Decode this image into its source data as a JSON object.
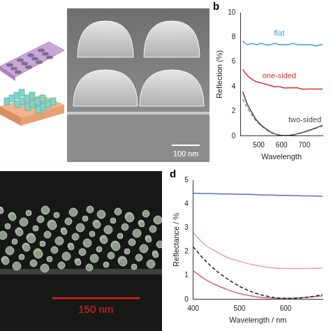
{
  "chart_data": [
    {
      "type": "line",
      "panel": "b",
      "x_label": "Wavelength",
      "y_label": "Reflection (%)",
      "x": [
        430,
        450,
        470,
        490,
        510,
        530,
        550,
        570,
        590,
        610,
        630,
        650,
        670,
        690,
        710,
        730,
        750,
        770,
        780
      ],
      "xlim": [
        420,
        780
      ],
      "xticks": [
        500,
        600,
        700
      ],
      "ylim": [
        0,
        10
      ],
      "yticks": [
        0,
        2,
        4,
        6,
        8,
        10
      ],
      "grid": false,
      "series": [
        {
          "name": "flat",
          "color": "#3d9be0",
          "line_style": "solid",
          "values": [
            7.7,
            7.4,
            7.5,
            7.4,
            7.5,
            7.4,
            7.4,
            7.5,
            7.4,
            7.4,
            7.4,
            7.5,
            7.4,
            7.4,
            7.4,
            7.4,
            7.3,
            7.4,
            7.4
          ]
        },
        {
          "name": "one-sided",
          "color": "#e0302a",
          "line_style": "solid",
          "values": [
            5.4,
            4.9,
            4.6,
            4.4,
            4.3,
            4.2,
            4.1,
            4.0,
            4.0,
            3.9,
            3.9,
            3.9,
            3.9,
            3.8,
            3.8,
            3.8,
            3.8,
            3.8,
            3.8
          ]
        },
        {
          "name": "two-sided",
          "color": "#4a4a4a",
          "line_style": "solid",
          "values": [
            3.6,
            2.6,
            1.9,
            1.3,
            0.9,
            0.6,
            0.35,
            0.18,
            0.08,
            0.05,
            0.06,
            0.1,
            0.18,
            0.28,
            0.4,
            0.52,
            0.65,
            0.8,
            0.85
          ]
        },
        {
          "color": "#8a8a8a",
          "line_style": "dashed",
          "values": [
            3.0,
            2.3,
            1.7,
            1.2,
            0.85,
            0.55,
            0.32,
            0.16,
            0.07,
            0.04,
            0.05,
            0.09,
            0.17,
            0.27,
            0.38,
            0.5,
            0.62,
            0.76,
            0.82
          ]
        }
      ]
    },
    {
      "type": "line",
      "panel": "d",
      "x_label": "Wavelength / nm",
      "y_label": "Reflectance / %",
      "x": [
        400,
        425,
        450,
        475,
        500,
        525,
        550,
        575,
        600,
        625,
        650,
        680
      ],
      "xlim": [
        400,
        680
      ],
      "xticks": [
        400,
        500,
        600
      ],
      "ylim": [
        0,
        5
      ],
      "yticks": [
        0,
        1,
        2,
        3,
        4,
        5
      ],
      "grid": false,
      "series": [
        {
          "color": "#5a6fd6",
          "line_style": "solid",
          "values": [
            4.45,
            4.44,
            4.43,
            4.42,
            4.41,
            4.4,
            4.38,
            4.37,
            4.36,
            4.35,
            4.34,
            4.33
          ]
        },
        {
          "color": "#222222",
          "line_style": "dashed",
          "values": [
            2.2,
            1.65,
            1.2,
            0.85,
            0.55,
            0.33,
            0.18,
            0.08,
            0.04,
            0.05,
            0.1,
            0.2
          ]
        },
        {
          "color": "#e59ad6",
          "line_style": "solid",
          "values": [
            2.8,
            2.3,
            2.0,
            1.75,
            1.6,
            1.47,
            1.38,
            1.32,
            1.3,
            1.3,
            1.3,
            1.32
          ]
        },
        {
          "color": "#d6608f",
          "line_style": "solid",
          "values": [
            1.2,
            0.85,
            0.6,
            0.4,
            0.25,
            0.15,
            0.08,
            0.05,
            0.05,
            0.07,
            0.1,
            0.15
          ]
        }
      ]
    }
  ],
  "images": [
    {
      "scale_bar": "100 nm"
    },
    {
      "scale_bar": "150 nm"
    }
  ]
}
